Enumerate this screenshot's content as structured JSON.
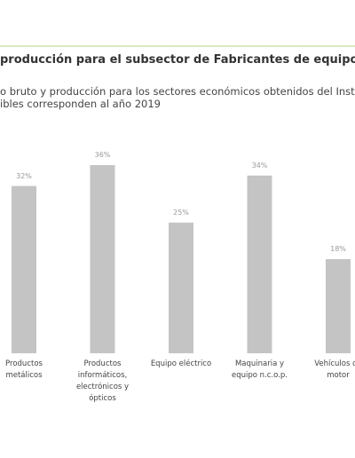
{
  "chart_data": {
    "type": "bar",
    "title": "producción para el subsector de Fabricantes de equipos y",
    "subtitle": [
      "o bruto y producción para los sectores económicos obtenidos del Insti",
      "ibles corresponden al año 2019"
    ],
    "categories": [
      "Productos metálicos",
      "Productos informáticos, electrónicos y ópticos",
      "Equipo eléctrico",
      "Maquinaria y equipo n.c.o.p.",
      "Vehículos de motor"
    ],
    "values": [
      32,
      36,
      25,
      34,
      18
    ],
    "value_labels": [
      "32%",
      "36%",
      "25%",
      "34%",
      "18%"
    ],
    "color": "#c4c4c4"
  }
}
